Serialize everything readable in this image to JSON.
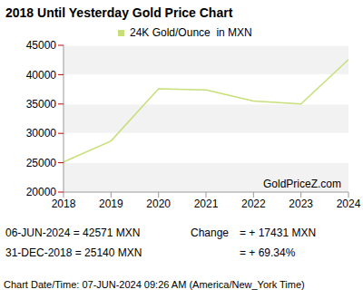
{
  "chart_data": {
    "type": "line",
    "title": "2018 Until Yesterday Gold Price Chart",
    "categories": [
      "2018",
      "2019",
      "2020",
      "2021",
      "2022",
      "2023",
      "2024"
    ],
    "series": [
      {
        "name": "24K Gold/Ounce  in MXN",
        "color": "#c6df78",
        "values": [
          25140,
          28700,
          37600,
          37400,
          35500,
          35000,
          42571
        ]
      }
    ],
    "ylim": [
      20000,
      45000
    ],
    "yticks": [
      20000,
      25000,
      30000,
      35000,
      40000,
      45000
    ],
    "grid": true,
    "legend": "top",
    "watermark": "GoldPriceZ.com",
    "footer": {
      "latest": "06-JUN-2024 = 42571 MXN",
      "change_label": "Change",
      "change": "= + 17431 MXN",
      "start": "31-DEC-2018 = 25140 MXN",
      "change_percent": "= + 69.34%",
      "timestamp": "Chart Date/Time: 07-JUN-2024 09:26 AM (America/New_York Time)"
    }
  }
}
